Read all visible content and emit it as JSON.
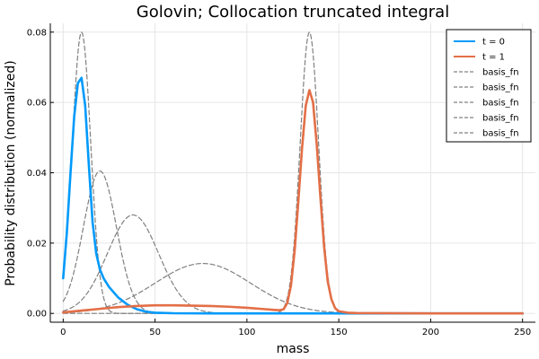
{
  "chart_data": {
    "type": "line",
    "title": "Golovin; Collocation truncated integral",
    "xlabel": "mass",
    "ylabel": "Probability distribution (normalized)",
    "xlim": [
      -7,
      257
    ],
    "ylim": [
      -0.0025,
      0.0825
    ],
    "xticks": [
      0,
      50,
      100,
      150,
      200,
      250
    ],
    "yticks": [
      0.0,
      0.02,
      0.04,
      0.06,
      0.08
    ],
    "xtick_labels": [
      "0",
      "50",
      "100",
      "150",
      "200",
      "250"
    ],
    "ytick_labels": [
      "0.00",
      "0.02",
      "0.04",
      "0.06",
      "0.08"
    ],
    "grid": true,
    "legend_position": "top-right",
    "series": [
      {
        "name": "t = 0",
        "color": "#009AFA",
        "style": "solid",
        "x": [
          0,
          2,
          4,
          6,
          8,
          10,
          12,
          14,
          16,
          18,
          20,
          22,
          25,
          30,
          35,
          40,
          45,
          50,
          60,
          80,
          100,
          150,
          200,
          250
        ],
        "y": [
          0.01,
          0.023,
          0.04,
          0.056,
          0.0655,
          0.067,
          0.059,
          0.042,
          0.026,
          0.017,
          0.0125,
          0.01,
          0.0075,
          0.0045,
          0.0025,
          0.0012,
          0.0005,
          0.0002,
          5e-05,
          0.0,
          0.0,
          0.0,
          0.0,
          0.0
        ]
      },
      {
        "name": "t = 1",
        "color": "#E36F47",
        "style": "solid",
        "x": [
          0,
          10,
          20,
          30,
          40,
          50,
          60,
          70,
          80,
          90,
          100,
          110,
          115,
          118,
          120,
          122,
          124,
          126,
          128,
          130,
          132,
          134,
          136,
          138,
          140,
          142,
          144,
          146,
          148,
          150,
          155,
          160,
          200,
          250
        ],
        "y": [
          0.0003,
          0.0008,
          0.0013,
          0.0018,
          0.0021,
          0.0023,
          0.0023,
          0.0022,
          0.0021,
          0.0019,
          0.0016,
          0.0012,
          0.001,
          0.0009,
          0.0012,
          0.003,
          0.008,
          0.018,
          0.032,
          0.047,
          0.059,
          0.0635,
          0.06,
          0.048,
          0.033,
          0.019,
          0.009,
          0.004,
          0.0015,
          0.0006,
          0.0002,
          0.0001,
          0.0,
          0.0
        ]
      },
      {
        "name": "basis_fn",
        "color": "#808080",
        "style": "dashed",
        "gaussian": {
          "amplitude": 0.08,
          "mean": 10,
          "sigma": 5
        },
        "x_range": [
          0,
          250
        ]
      },
      {
        "name": "basis_fn",
        "color": "#808080",
        "style": "dashed",
        "gaussian": {
          "amplitude": 0.0405,
          "mean": 20,
          "sigma": 9
        },
        "x_range": [
          0,
          250
        ]
      },
      {
        "name": "basis_fn",
        "color": "#808080",
        "style": "dashed",
        "gaussian": {
          "amplitude": 0.028,
          "mean": 38,
          "sigma": 14
        },
        "x_range": [
          0,
          250
        ]
      },
      {
        "name": "basis_fn",
        "color": "#808080",
        "style": "dashed",
        "gaussian": {
          "amplitude": 0.0142,
          "mean": 76,
          "sigma": 26
        },
        "x_range": [
          0,
          250
        ]
      },
      {
        "name": "basis_fn",
        "color": "#808080",
        "style": "dashed",
        "gaussian": {
          "amplitude": 0.08,
          "mean": 134,
          "sigma": 5
        },
        "x_range": [
          0,
          250
        ]
      }
    ]
  }
}
